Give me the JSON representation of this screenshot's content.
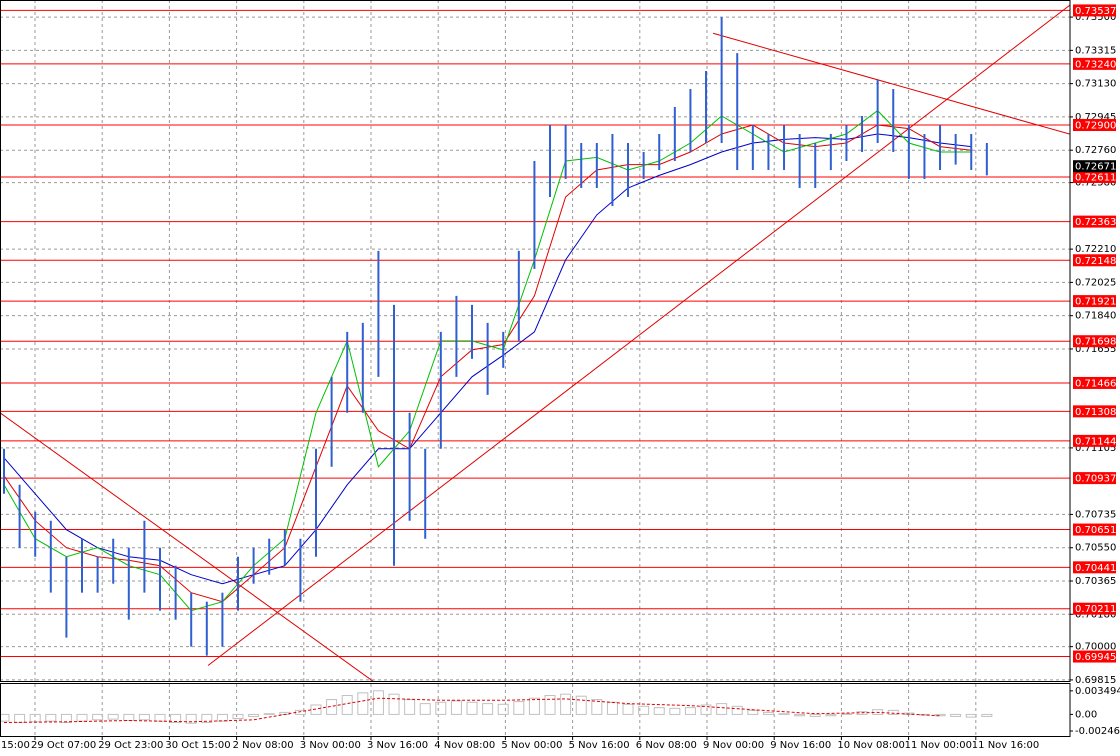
{
  "chart_data": {
    "type": "ohlc",
    "color": "#2f5fd0",
    "grid": true,
    "categories": [
      "15:00",
      "29 Oct 07:00",
      "29 Oct 23:00",
      "30 Oct 15:00",
      "2 Nov 08:00",
      "3 Nov 00:00",
      "3 Nov 16:00",
      "4 Nov 08:00",
      "5 Nov 00:00",
      "5 Nov 16:00",
      "6 Nov 08:00",
      "9 Nov 00:00",
      "9 Nov 16:00",
      "10 Nov 08:00",
      "11 Nov 00:00",
      "11 Nov 16:00"
    ],
    "xlim": [
      -0.256,
      68.33
    ],
    "ylim": [
      0.69809,
      0.73595
    ],
    "yticks": [
      {
        "value": 0.735,
        "label": "0.73500"
      },
      0.73315,
      {
        "value": 0.7313,
        "label": "0.73130"
      },
      0.72945,
      {
        "value": 0.7276,
        "label": "0.72760"
      },
      {
        "value": 0.7258,
        "label": "0.72580"
      },
      {
        "value": 0.7221,
        "label": "0.72210"
      },
      0.72025,
      {
        "value": 0.7184,
        "label": "0.71840"
      },
      0.71655,
      0.71105,
      0.70735,
      {
        "value": 0.7055,
        "label": "0.70550"
      },
      0.70365,
      {
        "value": 0.7018,
        "label": "0.70180"
      },
      {
        "value": 0.7,
        "label": "0.70000"
      },
      0.69815
    ],
    "high": [
      0.711,
      0.709,
      0.7075,
      0.707,
      0.705,
      0.706,
      0.705,
      0.706,
      0.7055,
      0.707,
      0.7055,
      0.7045,
      0.703,
      0.7025,
      0.703,
      0.705,
      0.7055,
      0.706,
      0.7065,
      0.706,
      0.711,
      0.715,
      0.7175,
      0.718,
      0.722,
      0.719,
      0.713,
      0.711,
      0.7175,
      0.7195,
      0.719,
      0.718,
      0.7175,
      0.722,
      0.727,
      0.729,
      0.729,
      0.728,
      0.728,
      0.7285,
      0.728,
      0.7275,
      0.7285,
      0.73,
      0.731,
      0.732,
      0.735,
      0.733,
      0.729,
      0.7285,
      0.729,
      0.7285,
      0.728,
      0.7285,
      0.729,
      0.7295,
      0.7315,
      0.731,
      0.729,
      0.7285,
      0.729,
      0.7285,
      0.7285,
      0.728
    ],
    "low": [
      0.7085,
      0.7055,
      0.705,
      0.703,
      0.7005,
      0.703,
      0.703,
      0.7035,
      0.7015,
      0.703,
      0.702,
      0.7015,
      0.7,
      0.6995,
      0.7,
      0.702,
      0.7035,
      0.704,
      0.7045,
      0.7025,
      0.705,
      0.71,
      0.713,
      0.713,
      0.715,
      0.7045,
      0.707,
      0.706,
      0.711,
      0.715,
      0.716,
      0.714,
      0.7155,
      0.717,
      0.721,
      0.725,
      0.726,
      0.7255,
      0.7255,
      0.7245,
      0.725,
      0.726,
      0.7265,
      0.727,
      0.7275,
      0.728,
      0.728,
      0.7265,
      0.7265,
      0.7265,
      0.7265,
      0.7255,
      0.7255,
      0.7265,
      0.727,
      0.7275,
      0.728,
      0.7275,
      0.726,
      0.726,
      0.7265,
      0.7268,
      0.7265,
      0.7262
    ],
    "ma_x": [
      0,
      2,
      4,
      6,
      8,
      10,
      12,
      14,
      16,
      18,
      20,
      22,
      24,
      26,
      28,
      30,
      32,
      34,
      36,
      38,
      40,
      42,
      44,
      46,
      48,
      50,
      52,
      54,
      56,
      58,
      60,
      62
    ],
    "moving_averages": [
      {
        "color": "#0000c8",
        "values": [
          0.7105,
          0.7085,
          0.7065,
          0.7055,
          0.705,
          0.7048,
          0.704,
          0.7035,
          0.704,
          0.7045,
          0.7065,
          0.709,
          0.711,
          0.711,
          0.713,
          0.715,
          0.7162,
          0.7175,
          0.7215,
          0.724,
          0.7255,
          0.7262,
          0.7268,
          0.7275,
          0.728,
          0.7282,
          0.7283,
          0.7282,
          0.7285,
          0.7283,
          0.728,
          0.7278
        ]
      },
      {
        "color": "#e00000",
        "values": [
          0.7095,
          0.707,
          0.7055,
          0.705,
          0.7048,
          0.7045,
          0.703,
          0.7025,
          0.704,
          0.7055,
          0.71,
          0.7145,
          0.712,
          0.711,
          0.715,
          0.7165,
          0.7168,
          0.7195,
          0.725,
          0.7265,
          0.7268,
          0.7268,
          0.7275,
          0.7285,
          0.729,
          0.728,
          0.7278,
          0.728,
          0.729,
          0.7288,
          0.7278,
          0.7276
        ]
      },
      {
        "color": "#00c000",
        "values": [
          0.709,
          0.706,
          0.705,
          0.7055,
          0.7045,
          0.704,
          0.702,
          0.7025,
          0.7045,
          0.706,
          0.713,
          0.717,
          0.71,
          0.712,
          0.717,
          0.717,
          0.7165,
          0.7215,
          0.727,
          0.7272,
          0.7265,
          0.727,
          0.728,
          0.7295,
          0.7285,
          0.7275,
          0.728,
          0.7285,
          0.7298,
          0.728,
          0.7275,
          0.7275
        ]
      }
    ],
    "trendline_color": "#e00000",
    "trendlines": [
      {
        "x": [
          -0.256,
          24.1
        ],
        "y": [
          0.713,
          0.6978
        ]
      },
      {
        "x": [
          13.08,
          68.33
        ],
        "y": [
          0.69895,
          0.73567
        ]
      },
      {
        "x": [
          45.45,
          68.33
        ],
        "y": [
          0.7341,
          0.72849
        ]
      }
    ],
    "level_color": "#ff0000",
    "levels": [
      0.73537,
      {
        "value": 0.7324,
        "label": "0.73240"
      },
      {
        "value": 0.729,
        "label": "0.72900"
      },
      0.72611,
      0.72363,
      0.72148,
      0.71921,
      0.71698,
      0.71466,
      0.71308,
      0.71144,
      0.70937,
      0.70651,
      0.70441,
      0.70211,
      0.69945
    ],
    "current_price": 0.72671,
    "osc_ylim": [
      -0.00335,
      0.00451
    ],
    "osc_yticks": [
      0.003494,
      {
        "value": 0,
        "label": "0.00"
      },
      -0.002464
    ],
    "osc_color": "#c0c0c0",
    "osc_values": [
      -0.001,
      -0.0012,
      -0.0011,
      -0.001,
      -0.0012,
      -0.001,
      -0.0008,
      -0.0007,
      -0.0009,
      -0.0008,
      -0.001,
      -0.0012,
      -0.0013,
      -0.0012,
      -0.001,
      -0.0006,
      -0.0003,
      0.0001,
      0.0003,
      0.0006,
      0.0014,
      0.0022,
      0.0028,
      0.0032,
      0.0035,
      0.003,
      0.0022,
      0.0016,
      0.0018,
      0.002,
      0.0018,
      0.0016,
      0.0015,
      0.0019,
      0.0024,
      0.0028,
      0.003,
      0.0027,
      0.0022,
      0.0018,
      0.0015,
      0.0012,
      0.001,
      0.0009,
      0.001,
      0.0014,
      0.0016,
      0.0012,
      0.0006,
      0.0003,
      0.0001,
      -0.0002,
      -0.0003,
      -0.0002,
      0.0001,
      0.0004,
      0.0007,
      0.0006,
      0.0002,
      -0.0001,
      -0.0002,
      -0.0003,
      -0.0004,
      -0.0003
    ],
    "signal_color": "#e00000",
    "signal_x": [
      0,
      4,
      8,
      12,
      16,
      20,
      24,
      28,
      32,
      36,
      40,
      44,
      48,
      52,
      56,
      60
    ],
    "signal_values": [
      -0.0012,
      -0.0011,
      -0.0009,
      -0.0011,
      -0.0008,
      0.0008,
      0.0024,
      0.0021,
      0.0021,
      0.0023,
      0.0016,
      0.0013,
      0.0007,
      0.0001,
      0.0003,
      -0.0002
    ]
  }
}
